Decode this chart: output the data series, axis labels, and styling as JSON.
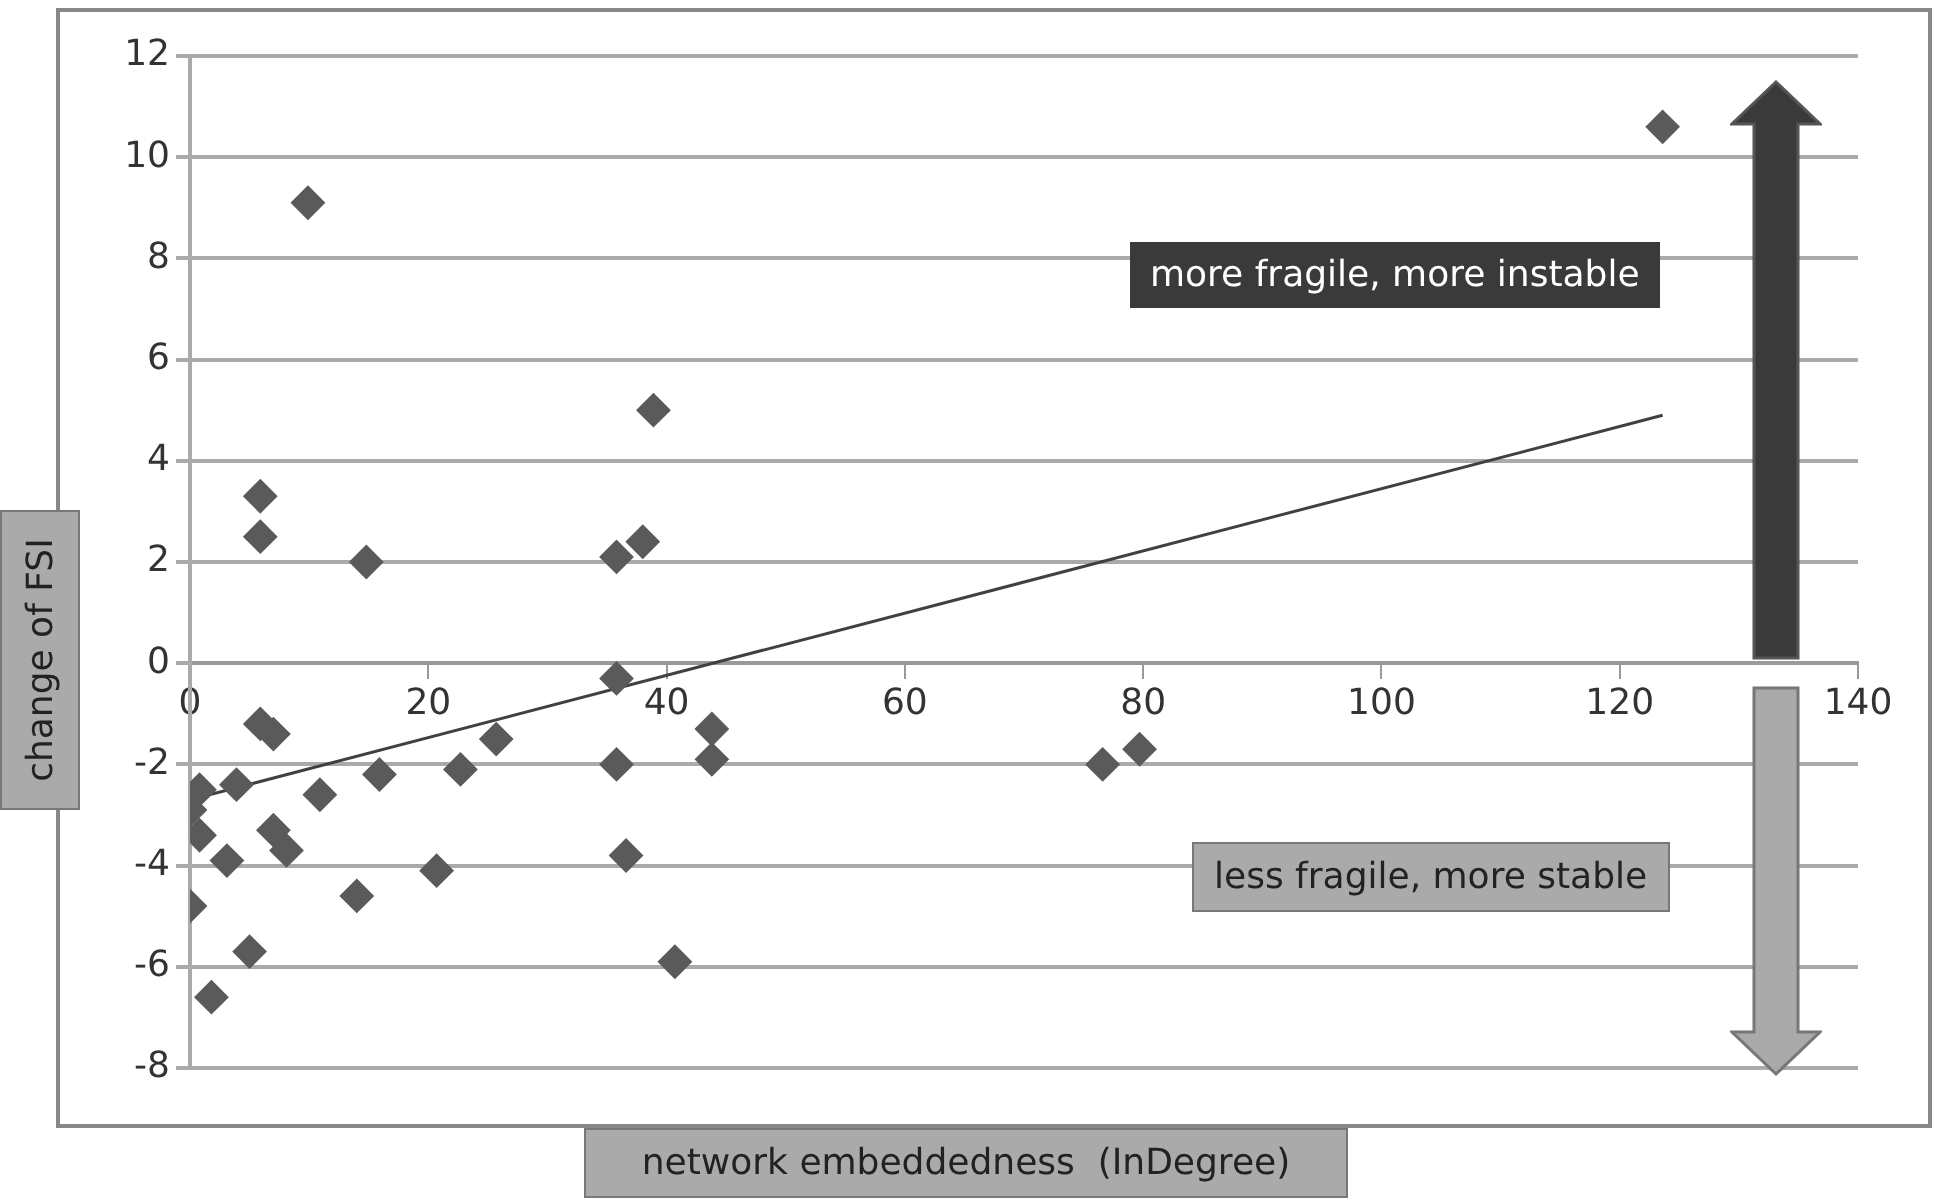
{
  "chart_data": {
    "type": "scatter",
    "xlabel": "network embeddedness  (InDegree)",
    "ylabel": "change of FSI",
    "annotations": [
      "more fragile, more instable",
      "less fragile, more stable"
    ],
    "series": [
      {
        "color": "#5a5a5a",
        "marker": "diamond",
        "x": [
          9.9,
          5.9,
          5.9,
          14.8,
          35.8,
          38.0,
          38.9,
          123.6,
          76.6,
          79.7,
          35.8,
          5.9,
          7.0,
          25.7,
          43.8,
          43.8,
          0.8,
          3.9,
          10.9,
          15.9,
          22.7,
          35.8,
          0,
          0.8,
          3.1,
          7.0,
          8.1,
          14.0,
          20.7,
          36.6,
          0,
          5.0,
          1.8,
          40.7
        ],
        "values": [
          9.1,
          3.3,
          2.5,
          2.0,
          2.1,
          2.4,
          5.0,
          10.6,
          -2.0,
          -1.7,
          -0.3,
          -1.2,
          -1.4,
          -1.5,
          -1.3,
          -1.9,
          -2.5,
          -2.4,
          -2.6,
          -2.2,
          -2.1,
          -2.0,
          -2.9,
          -3.4,
          -3.9,
          -3.3,
          -3.7,
          -4.6,
          -4.1,
          -3.8,
          -4.8,
          -5.7,
          -6.6,
          -5.9
        ]
      },
      {
        "type": "line",
        "marker": "none",
        "color": "#404040",
        "x": [
          0,
          123.6
        ],
        "values": [
          -2.7,
          4.9
        ]
      }
    ],
    "xlim": [
      0,
      140
    ],
    "xticks": [
      0,
      20,
      40,
      60,
      80,
      100,
      120,
      140
    ],
    "ylim": [
      -8,
      12
    ],
    "yticks": [
      -8,
      -6,
      -4,
      -2,
      0,
      2,
      4,
      6,
      8,
      10,
      12
    ],
    "grid": "y",
    "legend": false
  }
}
